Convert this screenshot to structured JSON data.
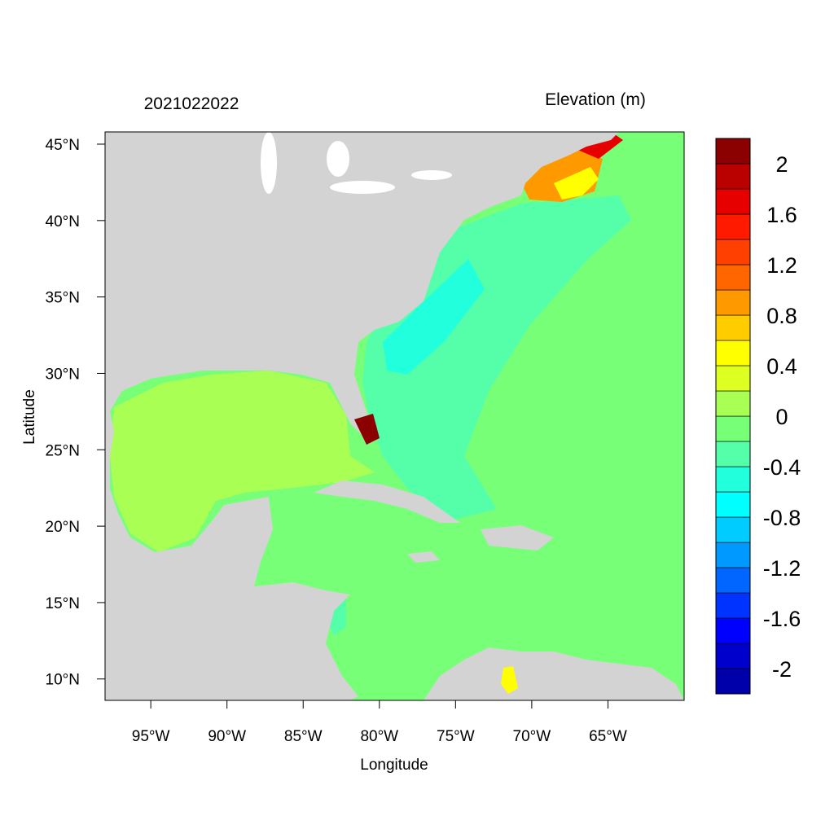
{
  "chart_data": {
    "type": "map",
    "title": "2021022022",
    "subtitle": "Elevation (m)",
    "x_label": "Longitude",
    "y_label": "Latitude",
    "xlim": [
      -98,
      -60
    ],
    "ylim": [
      8.6,
      45.8
    ],
    "xticks": [
      {
        "value": -95,
        "label": "95°W"
      },
      {
        "value": -90,
        "label": "90°W"
      },
      {
        "value": -85,
        "label": "85°W"
      },
      {
        "value": -80,
        "label": "80°W"
      },
      {
        "value": -75,
        "label": "75°W"
      },
      {
        "value": -70,
        "label": "70°W"
      },
      {
        "value": -65,
        "label": "65°W"
      }
    ],
    "yticks": [
      {
        "value": 10,
        "label": "10°N"
      },
      {
        "value": 15,
        "label": "15°N"
      },
      {
        "value": 20,
        "label": "20°N"
      },
      {
        "value": 25,
        "label": "25°N"
      },
      {
        "value": 30,
        "label": "30°N"
      },
      {
        "value": 35,
        "label": "35°N"
      },
      {
        "value": 40,
        "label": "40°N"
      },
      {
        "value": 45,
        "label": "45°N"
      }
    ],
    "colorbar": {
      "levels": [
        -2.2,
        -2,
        -1.8,
        -1.6,
        -1.4,
        -1.2,
        -1,
        -0.8,
        -0.6,
        -0.4,
        -0.2,
        0,
        0.2,
        0.4,
        0.6,
        0.8,
        1,
        1.2,
        1.4,
        1.6,
        1.8,
        2,
        2.2
      ],
      "colors": [
        "#0000aa",
        "#0000cc",
        "#0000ff",
        "#0033ff",
        "#0066ff",
        "#0099ff",
        "#00ccff",
        "#00ffff",
        "#22ffdd",
        "#55ffaa",
        "#77ff77",
        "#aaff55",
        "#ddff22",
        "#ffff00",
        "#ffcc00",
        "#ff9900",
        "#ff6600",
        "#ff4000",
        "#ff1a00",
        "#e60000",
        "#bb0000",
        "#8b0000"
      ],
      "ticks": [
        -2,
        -1.6,
        -1.2,
        -0.8,
        -0.4,
        0,
        0.4,
        0.8,
        1.2,
        1.6,
        2
      ]
    }
  }
}
